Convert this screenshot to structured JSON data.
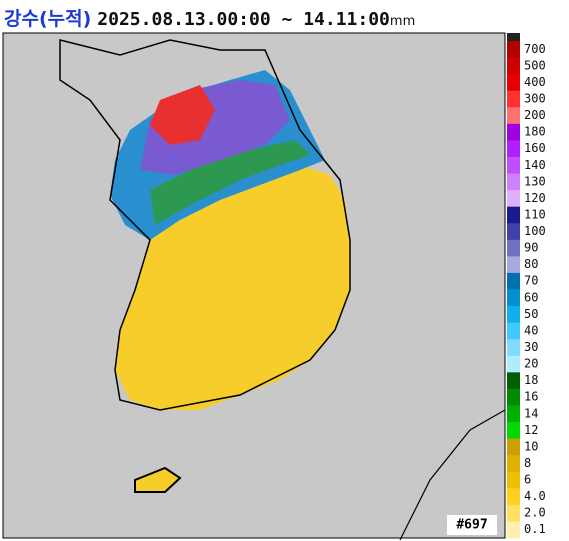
{
  "header": {
    "title": "강수(누적)",
    "period": "2025.08.13.00:00 ~ 14.11:00",
    "unit": "mm"
  },
  "legend": {
    "labels": [
      "700",
      "500",
      "400",
      "300",
      "200",
      "180",
      "160",
      "140",
      "130",
      "120",
      "110",
      "100",
      "90",
      "80",
      "70",
      "60",
      "50",
      "40",
      "30",
      "20",
      "18",
      "16",
      "14",
      "12",
      "10",
      "8",
      "6",
      "4.0",
      "2.0",
      "0.1"
    ],
    "colors": [
      "#b00000",
      "#d00000",
      "#e80000",
      "#ff3030",
      "#ff7070",
      "#a000e0",
      "#b020ff",
      "#c050ff",
      "#d080ff",
      "#e0b0ff",
      "#1a1a90",
      "#4040a8",
      "#7070c0",
      "#a8a8dc",
      "#0070b0",
      "#0090d0",
      "#10b0f0",
      "#40c8ff",
      "#80dcff",
      "#b0ecff",
      "#006000",
      "#008a00",
      "#00b000",
      "#00d800",
      "#cca000",
      "#e0b000",
      "#f0c000",
      "#ffd020",
      "#ffe060",
      "#fff0b0"
    ]
  },
  "badge": "#697"
}
